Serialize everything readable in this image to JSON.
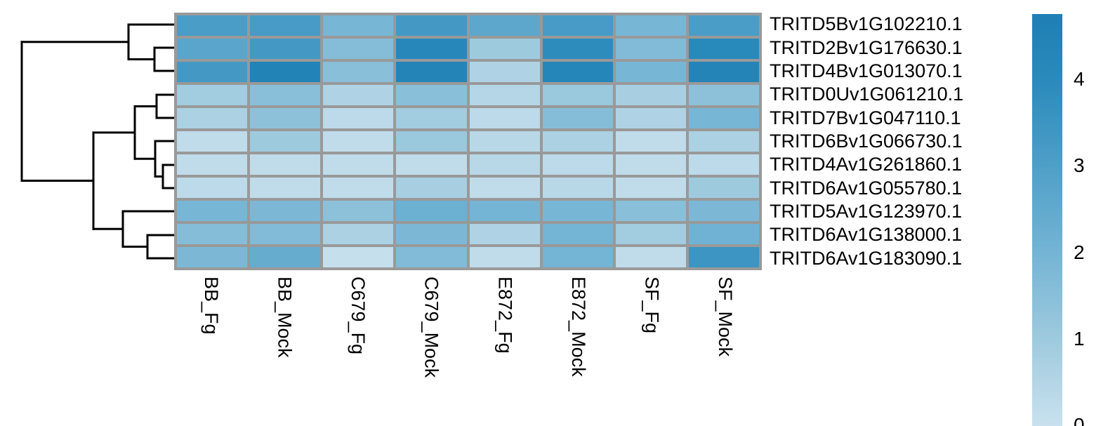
{
  "chart_data": {
    "type": "heatmap",
    "title": "",
    "description": "Clustered expression heatmap with row dendrogram and blue color scale",
    "columns": [
      "BB_Fg",
      "BB_Mock",
      "C679_Fg",
      "C679_Mock",
      "E872_Fg",
      "E872_Mock",
      "SF_Fg",
      "SF_Mock"
    ],
    "rows": [
      "TRITD5Bv1G102210.1",
      "TRITD2Bv1G176630.1",
      "TRITD4Bv1G013070.1",
      "TRITD0Uv1G061210.1",
      "TRITD7Bv1G047110.1",
      "TRITD6Bv1G066730.1",
      "TRITD4Av1G261860.1",
      "TRITD6Av1G055780.1",
      "TRITD5Av1G123970.1",
      "TRITD6Av1G138000.1",
      "TRITD6Av1G183090.1"
    ],
    "values": [
      [
        3.1,
        3.2,
        1.9,
        3.3,
        2.6,
        3.2,
        1.9,
        3.1
      ],
      [
        2.7,
        3.3,
        1.6,
        4.2,
        1.0,
        3.9,
        1.7,
        4.1
      ],
      [
        3.3,
        4.5,
        1.5,
        4.4,
        0.6,
        4.3,
        1.9,
        4.4
      ],
      [
        0.9,
        1.5,
        0.6,
        1.5,
        0.5,
        1.1,
        0.8,
        1.4
      ],
      [
        0.7,
        1.4,
        0.3,
        0.9,
        0.3,
        1.6,
        0.6,
        1.9
      ],
      [
        0.2,
        1.0,
        0.2,
        1.1,
        0.4,
        0.7,
        0.2,
        0.7
      ],
      [
        0.2,
        0.2,
        0.2,
        0.2,
        0.4,
        0.3,
        0.2,
        0.3
      ],
      [
        0.3,
        0.2,
        0.2,
        0.8,
        0.2,
        0.4,
        0.2,
        1.0
      ],
      [
        1.9,
        1.8,
        1.4,
        2.2,
        2.0,
        1.9,
        1.5,
        1.8
      ],
      [
        1.6,
        1.7,
        0.7,
        1.8,
        0.6,
        2.0,
        0.9,
        2.1
      ],
      [
        1.8,
        2.4,
        0.1,
        1.7,
        0.2,
        2.0,
        0.2,
        3.5
      ]
    ],
    "grid_on": true,
    "grid_color": "#999999",
    "legend_position": "right",
    "legend_ticks": [
      "4",
      "3",
      "2",
      "1",
      "0"
    ],
    "colorscale": {
      "min": 0,
      "max": 4.745,
      "stops": [
        [
          0.0,
          "#c9e1ee"
        ],
        [
          1.0,
          "#9ecade"
        ],
        [
          2.0,
          "#74b4d4"
        ],
        [
          3.0,
          "#4e9fc8"
        ],
        [
          4.0,
          "#2a8abc"
        ],
        [
          4.745,
          "#1e7fb4"
        ]
      ]
    },
    "row_dendrogram": {
      "line_color": "#000000",
      "line_width": 3,
      "segments": [
        [
          183,
          35,
          248,
          35
        ],
        [
          220,
          68,
          248,
          68
        ],
        [
          220,
          101,
          248,
          101
        ],
        [
          220,
          68,
          220,
          101
        ],
        [
          183,
          84.5,
          220,
          84.5
        ],
        [
          183,
          35,
          183,
          84.5
        ],
        [
          31,
          59.75,
          183,
          59.75
        ],
        [
          223,
          135,
          248,
          135
        ],
        [
          223,
          168,
          248,
          168
        ],
        [
          223,
          135,
          223,
          168
        ],
        [
          192,
          151.5,
          223,
          151.5
        ],
        [
          221,
          201,
          248,
          201
        ],
        [
          232,
          235,
          248,
          235
        ],
        [
          232,
          268,
          248,
          268
        ],
        [
          232,
          235,
          232,
          268
        ],
        [
          221,
          251.5,
          232,
          251.5
        ],
        [
          221,
          201,
          221,
          251.5
        ],
        [
          192,
          226.25,
          221,
          226.25
        ],
        [
          192,
          151.5,
          192,
          226.25
        ],
        [
          133,
          188.88,
          192,
          188.88
        ],
        [
          175,
          301,
          248,
          301
        ],
        [
          210,
          335,
          248,
          335
        ],
        [
          210,
          368,
          248,
          368
        ],
        [
          210,
          335,
          210,
          368
        ],
        [
          175,
          351.5,
          210,
          351.5
        ],
        [
          175,
          301,
          175,
          351.5
        ],
        [
          133,
          326.25,
          175,
          326.25
        ],
        [
          133,
          188.88,
          133,
          326.25
        ],
        [
          31,
          257.56,
          133,
          257.56
        ],
        [
          31,
          59.75,
          31,
          257.56
        ]
      ]
    }
  }
}
